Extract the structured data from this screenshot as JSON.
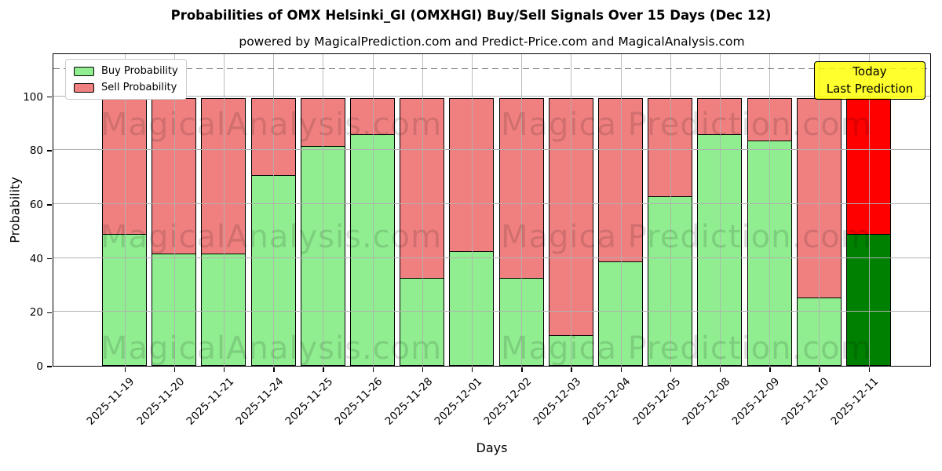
{
  "title": "Probabilities of OMX Helsinki_GI (OMXHGI) Buy/Sell Signals Over 15 Days (Dec 12)",
  "subtitle": "powered by MagicalPrediction.com and Predict-Price.com and MagicalAnalysis.com",
  "annotation_box": {
    "line1": "Today",
    "line2": "Last Prediction",
    "bg_color": "#ffff00"
  },
  "legend": [
    {
      "label": "Buy Probability",
      "color": "#90ee90"
    },
    {
      "label": "Sell Probability",
      "color": "#f08080"
    }
  ],
  "watermarks": {
    "left_text": "MagicalAnalysis.com",
    "right_text": "Magica Prediction.com",
    "rows": 3
  },
  "chart_data": {
    "type": "bar",
    "stacked": true,
    "title": "Probabilities of OMX Helsinki_GI (OMXHGI) Buy/Sell Signals Over 15 Days (Dec 12)",
    "xlabel": "Days",
    "ylabel": "Probability",
    "categories": [
      "2025-11-19",
      "2025-11-20",
      "2025-11-21",
      "2025-11-24",
      "2025-11-25",
      "2025-11-26",
      "2025-11-28",
      "2025-12-01",
      "2025-12-02",
      "2025-12-03",
      "2025-12-04",
      "2025-12-05",
      "2025-12-08",
      "2025-12-09",
      "2025-12-10",
      "2025-12-11"
    ],
    "series": [
      {
        "name": "Buy Probability",
        "color": "#90ee90",
        "today_color": "#008000",
        "values": [
          49,
          41.5,
          41.5,
          71,
          82,
          86.5,
          32.5,
          42.5,
          32.5,
          11,
          38.5,
          63,
          86.5,
          84,
          25,
          49
        ]
      },
      {
        "name": "Sell Probability",
        "color": "#f08080",
        "today_color": "#ff0000",
        "values": [
          51,
          58.5,
          58.5,
          29,
          18,
          13.5,
          67.5,
          57.5,
          67.5,
          89,
          61.5,
          37,
          13.5,
          16,
          75,
          51
        ]
      }
    ],
    "today_index": 15,
    "yticks": [
      0,
      20,
      40,
      60,
      80,
      100
    ],
    "ylim": [
      0,
      116.2
    ],
    "dashed_line_y": 110,
    "grid": true,
    "legend_position": "upper left"
  }
}
